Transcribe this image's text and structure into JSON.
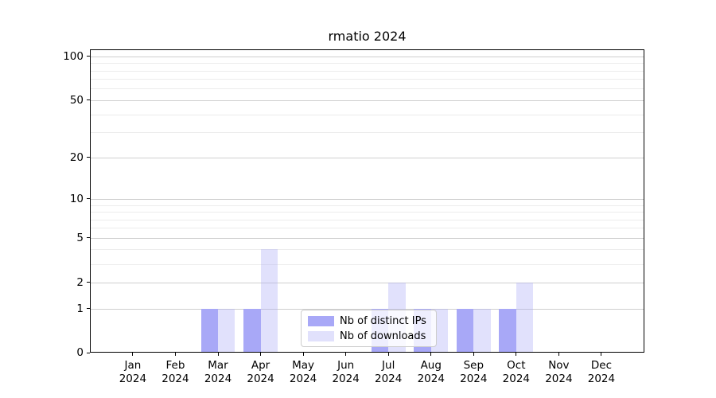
{
  "title": "rmatio 2024",
  "chart_data": {
    "type": "bar",
    "title": "rmatio 2024",
    "categories": [
      "Jan 2024",
      "Feb 2024",
      "Mar 2024",
      "Apr 2024",
      "May 2024",
      "Jun 2024",
      "Jul 2024",
      "Aug 2024",
      "Sep 2024",
      "Oct 2024",
      "Nov 2024",
      "Dec 2024"
    ],
    "series": [
      {
        "name": "Nb of distinct IPs",
        "color": "#a8a8f7",
        "alpha": 1,
        "values": [
          0,
          0,
          1,
          1,
          0,
          0,
          1,
          1,
          1,
          1,
          0,
          0
        ]
      },
      {
        "name": "Nb of downloads",
        "color": "#a8a8f7",
        "alpha": 0.35,
        "values": [
          0,
          0,
          1,
          4,
          0,
          0,
          2,
          1,
          1,
          2,
          0,
          0
        ]
      }
    ],
    "xlabel": "",
    "ylabel": "",
    "yaxis": {
      "scale": "log10(1+x)",
      "major_ticks": [
        0,
        1,
        2,
        5,
        10,
        20,
        50,
        100
      ],
      "minor_ticks": [
        3,
        4,
        6,
        7,
        8,
        9,
        30,
        40,
        60,
        70,
        80,
        90
      ],
      "ylim": [
        0,
        110
      ]
    },
    "grid": "horizontal",
    "legend": {
      "position": "inside-bottom-center"
    }
  }
}
